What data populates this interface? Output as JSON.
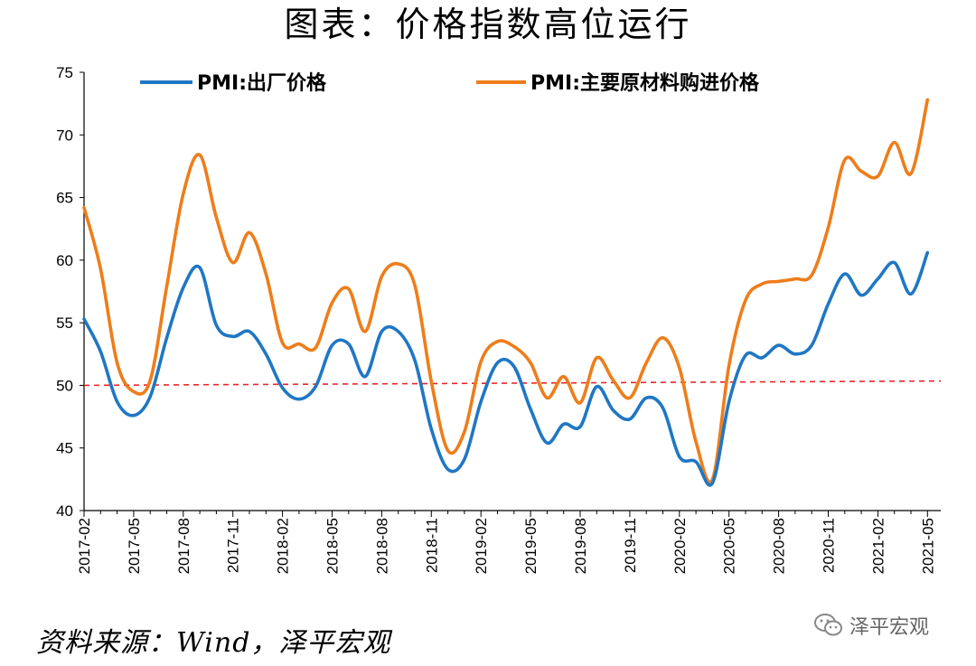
{
  "chart_data": {
    "type": "line",
    "title": "图表：价格指数高位运行",
    "source": "资料来源：Wind，泽平宏观",
    "watermark": "泽平宏观",
    "ylim": [
      40,
      75
    ],
    "yticks": [
      40,
      45,
      50,
      55,
      60,
      65,
      70,
      75
    ],
    "reference_line": {
      "value": 50,
      "color": "#e8262a",
      "style": "dashed"
    },
    "x": [
      "2017-02",
      "2017-03",
      "2017-04",
      "2017-05",
      "2017-06",
      "2017-07",
      "2017-08",
      "2017-09",
      "2017-10",
      "2017-11",
      "2017-12",
      "2018-01",
      "2018-02",
      "2018-03",
      "2018-04",
      "2018-05",
      "2018-06",
      "2018-07",
      "2018-08",
      "2018-09",
      "2018-10",
      "2018-11",
      "2018-12",
      "2019-01",
      "2019-02",
      "2019-03",
      "2019-04",
      "2019-05",
      "2019-06",
      "2019-07",
      "2019-08",
      "2019-09",
      "2019-10",
      "2019-11",
      "2019-12",
      "2020-01",
      "2020-02",
      "2020-03",
      "2020-04",
      "2020-05",
      "2020-06",
      "2020-07",
      "2020-08",
      "2020-09",
      "2020-10",
      "2020-11",
      "2020-12",
      "2021-01",
      "2021-02",
      "2021-03",
      "2021-04",
      "2021-05"
    ],
    "xtick_labels": [
      "2017-02",
      "2017-05",
      "2017-08",
      "2017-11",
      "2018-02",
      "2018-05",
      "2018-08",
      "2018-11",
      "2019-02",
      "2019-05",
      "2019-08",
      "2019-11",
      "2020-02",
      "2020-05",
      "2020-08",
      "2020-11",
      "2021-02",
      "2021-05"
    ],
    "series": [
      {
        "name": "PMI:出厂价格",
        "color": "#1f77c4",
        "values": [
          55.3,
          52.7,
          48.7,
          47.6,
          49.1,
          53.8,
          57.8,
          59.4,
          54.8,
          53.9,
          54.3,
          52.5,
          49.8,
          48.9,
          49.9,
          53.2,
          53.3,
          50.7,
          54.3,
          54.3,
          52.0,
          46.5,
          43.3,
          44.1,
          48.7,
          51.8,
          51.5,
          48.1,
          45.4,
          46.9,
          46.7,
          49.9,
          48.0,
          47.3,
          49.0,
          48.2,
          44.3,
          43.9,
          42.2,
          48.7,
          52.4,
          52.2,
          53.2,
          52.5,
          53.2,
          56.5,
          58.9,
          57.2,
          58.5,
          59.8,
          57.3,
          60.6
        ]
      },
      {
        "name": "PMI:主要原材料购进价格",
        "color": "#ee7d1a",
        "values": [
          64.2,
          59.3,
          51.8,
          49.5,
          50.4,
          57.9,
          65.3,
          68.4,
          63.4,
          59.8,
          62.2,
          58.9,
          53.4,
          53.3,
          53.0,
          56.6,
          57.7,
          54.3,
          58.7,
          59.7,
          58.0,
          50.3,
          44.8,
          46.3,
          51.9,
          53.5,
          53.1,
          51.8,
          49.0,
          50.7,
          48.6,
          52.2,
          50.4,
          49.0,
          51.8,
          53.8,
          51.4,
          45.5,
          42.5,
          51.6,
          56.8,
          58.1,
          58.3,
          58.5,
          58.8,
          62.6,
          68.0,
          67.1,
          66.7,
          69.4,
          66.9,
          72.8
        ]
      }
    ]
  }
}
